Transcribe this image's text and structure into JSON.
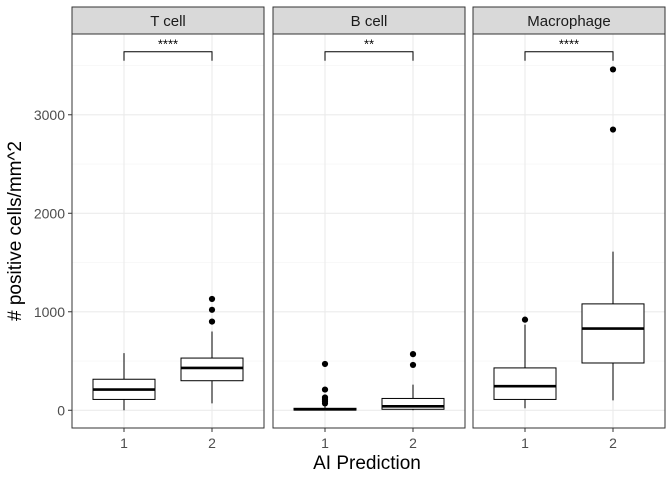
{
  "chart_data": {
    "type": "boxplot",
    "xlabel": "AI Prediction",
    "ylabel": "# positive cells/mm^2",
    "ylim": [
      -180,
      3820
    ],
    "yticks": [
      0,
      1000,
      2000,
      3000
    ],
    "ytick_labels": [
      "0",
      "1000",
      "2000",
      "3000"
    ],
    "grid": true,
    "categories": [
      "1",
      "2"
    ],
    "facets": [
      {
        "name": "T cell",
        "significance": "****",
        "boxes": [
          {
            "category": "1",
            "lower_whisker": 0,
            "q1": 110,
            "median": 210,
            "q3": 315,
            "upper_whisker": 580,
            "outliers": []
          },
          {
            "category": "2",
            "lower_whisker": 70,
            "q1": 300,
            "median": 430,
            "q3": 530,
            "upper_whisker": 800,
            "outliers": [
              900,
              1020,
              1130
            ]
          }
        ]
      },
      {
        "name": "B cell",
        "significance": "**",
        "boxes": [
          {
            "category": "1",
            "lower_whisker": 0,
            "q1": 2,
            "median": 10,
            "q3": 20,
            "upper_whisker": 40,
            "outliers": [
              70,
              90,
              110,
              130,
              210,
              470
            ]
          },
          {
            "category": "2",
            "lower_whisker": 0,
            "q1": 10,
            "median": 40,
            "q3": 120,
            "upper_whisker": 260,
            "outliers": [
              460,
              570
            ]
          }
        ]
      },
      {
        "name": "Macrophage",
        "significance": "****",
        "boxes": [
          {
            "category": "1",
            "lower_whisker": 20,
            "q1": 110,
            "median": 245,
            "q3": 430,
            "upper_whisker": 870,
            "outliers": [
              920
            ]
          },
          {
            "category": "2",
            "lower_whisker": 100,
            "q1": 480,
            "median": 830,
            "q3": 1080,
            "upper_whisker": 1610,
            "outliers": [
              2850,
              3460
            ]
          }
        ]
      }
    ],
    "significance_bracket_y": 3640,
    "colors": {
      "strip_fill": "#d9d9d9",
      "panel_border": "#333333",
      "grid_major": "#ebebeb",
      "grid_minor": "#f5f5f5",
      "box_line": "#000000"
    }
  }
}
